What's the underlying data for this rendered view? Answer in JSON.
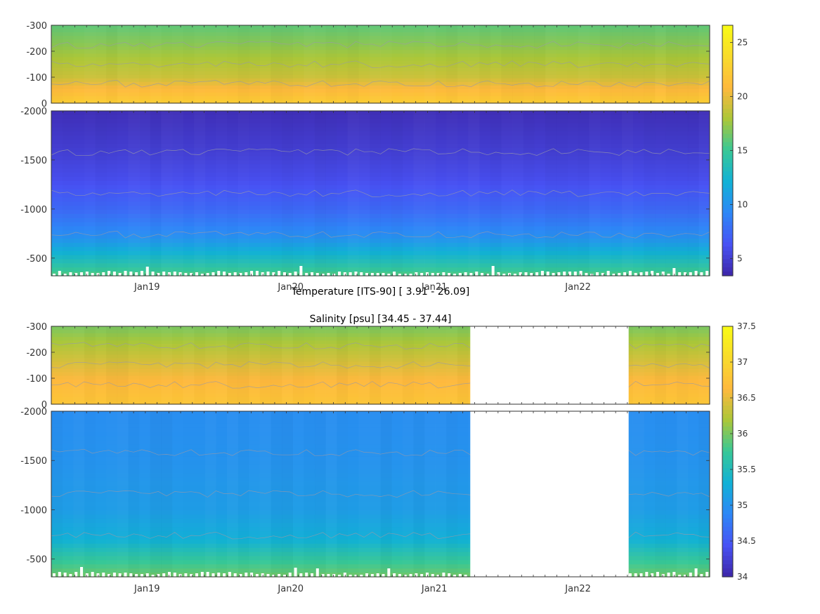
{
  "chart_data": [
    {
      "type": "heatmap",
      "title": "Temperature [ITS-90]   [ 3.91 - 26.09]",
      "variable": "Temperature",
      "units": "ITS-90",
      "value_range": [
        3.91,
        26.09
      ],
      "colormap": "parula",
      "color_limits": [
        3.4,
        26.6
      ],
      "colorbar_ticks": [
        5,
        10,
        15,
        20,
        25
      ],
      "colorbar_tick_labels": [
        "5",
        "10",
        "15",
        "20",
        "25"
      ],
      "x_range": [
        "2018-05",
        "2022-11"
      ],
      "x_ticks": [
        "2019-01-01",
        "2020-01-01",
        "2021-01-01",
        "2022-01-01"
      ],
      "x_tick_labels": [
        "Jan19",
        "Jan20",
        "Jan21",
        "Jan22"
      ],
      "upper_panel": {
        "ylim": [
          -300,
          0
        ],
        "y_ticks": [
          0,
          -100,
          -200,
          -300
        ],
        "y_tick_labels": [
          "0",
          "-100",
          "-200",
          "-300"
        ]
      },
      "lower_panel": {
        "ylim": [
          -2000,
          -320
        ],
        "y_ticks": [
          -500,
          -1000,
          -1500,
          -2000
        ],
        "y_tick_labels": [
          "-500",
          "-1000",
          "-1500",
          "-2000"
        ]
      },
      "data_gaps": [],
      "depth_profile": [
        {
          "depth": 0,
          "value": 22.5
        },
        {
          "depth": -50,
          "value": 21
        },
        {
          "depth": -100,
          "value": 19
        },
        {
          "depth": -200,
          "value": 17.5
        },
        {
          "depth": -300,
          "value": 16
        },
        {
          "depth": -500,
          "value": 13
        },
        {
          "depth": -700,
          "value": 10
        },
        {
          "depth": -1000,
          "value": 7.5
        },
        {
          "depth": -1300,
          "value": 6
        },
        {
          "depth": -1600,
          "value": 5
        },
        {
          "depth": -2000,
          "value": 4
        }
      ]
    },
    {
      "type": "heatmap",
      "title": "Salinity [psu]   [34.45 - 37.44]",
      "variable": "Salinity",
      "units": "psu",
      "value_range": [
        34.45,
        37.44
      ],
      "colormap": "parula",
      "color_limits": [
        34,
        37.5
      ],
      "colorbar_ticks": [
        34,
        34.5,
        35,
        35.5,
        36,
        36.5,
        37,
        37.5
      ],
      "colorbar_tick_labels": [
        "34",
        "34.5",
        "35",
        "35.5",
        "36",
        "36.5",
        "37",
        "37.5"
      ],
      "x_range": [
        "2018-05",
        "2022-11"
      ],
      "x_ticks": [
        "2019-01-01",
        "2020-01-01",
        "2021-01-01",
        "2022-01-01"
      ],
      "x_tick_labels": [
        "Jan19",
        "Jan20",
        "Jan21",
        "Jan22"
      ],
      "upper_panel": {
        "ylim": [
          -300,
          0
        ],
        "y_ticks": [
          0,
          -100,
          -200,
          -300
        ],
        "y_tick_labels": [
          "0",
          "-100",
          "-200",
          "-300"
        ]
      },
      "lower_panel": {
        "ylim": [
          -2000,
          -320
        ],
        "y_ticks": [
          -500,
          -1000,
          -1500,
          -2000
        ],
        "y_tick_labels": [
          "-500",
          "-1000",
          "-1500",
          "-2000"
        ]
      },
      "data_gaps": [
        [
          "2021-04-01",
          "2022-05-08"
        ]
      ],
      "depth_profile": [
        {
          "depth": 0,
          "value": 36.8
        },
        {
          "depth": -50,
          "value": 36.7
        },
        {
          "depth": -100,
          "value": 36.6
        },
        {
          "depth": -200,
          "value": 36.3
        },
        {
          "depth": -300,
          "value": 36.0
        },
        {
          "depth": -500,
          "value": 35.7
        },
        {
          "depth": -700,
          "value": 35.3
        },
        {
          "depth": -1000,
          "value": 35.1
        },
        {
          "depth": -1500,
          "value": 35.0
        },
        {
          "depth": -2000,
          "value": 34.95
        }
      ]
    }
  ]
}
